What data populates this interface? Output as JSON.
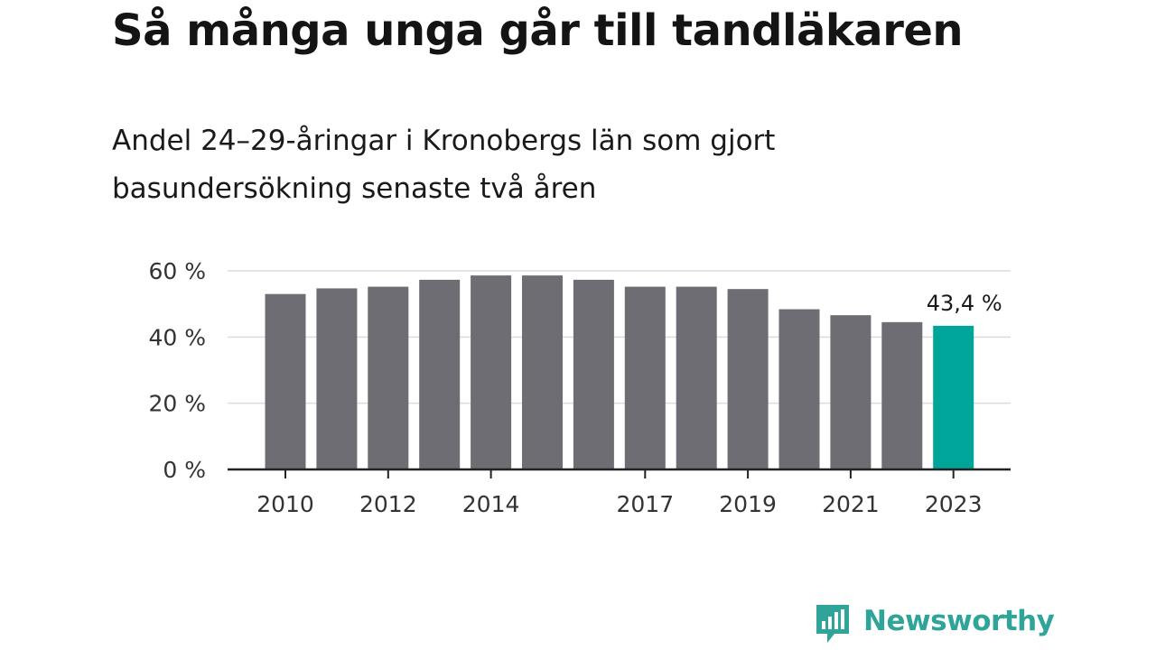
{
  "title": "Så många unga går till tandläkaren",
  "subtitle": "Andel 24–29-åringar i Kronobergs län som gjort basundersökning senaste två åren",
  "brand": {
    "name": "Newsworthy",
    "color": "#2fa59a",
    "icon": "newsworthy-logo-icon"
  },
  "chart_data": {
    "type": "bar",
    "title": "Så många unga går till tandläkaren",
    "subtitle": "Andel 24–29-åringar i Kronobergs län som gjort basundersökning senaste två åren",
    "categories": [
      "2010",
      "2011",
      "2012",
      "2013",
      "2014",
      "2015",
      "2016",
      "2017",
      "2018",
      "2019",
      "2020",
      "2021",
      "2022",
      "2023"
    ],
    "values": [
      53.0,
      54.7,
      55.2,
      57.3,
      58.6,
      58.6,
      57.3,
      55.2,
      55.2,
      54.5,
      48.4,
      46.6,
      44.5,
      43.4
    ],
    "x_tick_labels": [
      "2010",
      "2012",
      "2014",
      "2017",
      "2019",
      "2021",
      "2023"
    ],
    "y_ticks": [
      0,
      20,
      40,
      60
    ],
    "y_tick_labels": [
      "0 %",
      "20 %",
      "40 %",
      "60 %"
    ],
    "ylim": [
      0,
      60
    ],
    "grid": true,
    "colors": {
      "bar": "#6e6d73",
      "highlight": "#00a59a",
      "grid": "#dcdcdc",
      "axis": "#222222"
    },
    "highlight": {
      "category": "2023",
      "label": "43,4 %"
    }
  }
}
